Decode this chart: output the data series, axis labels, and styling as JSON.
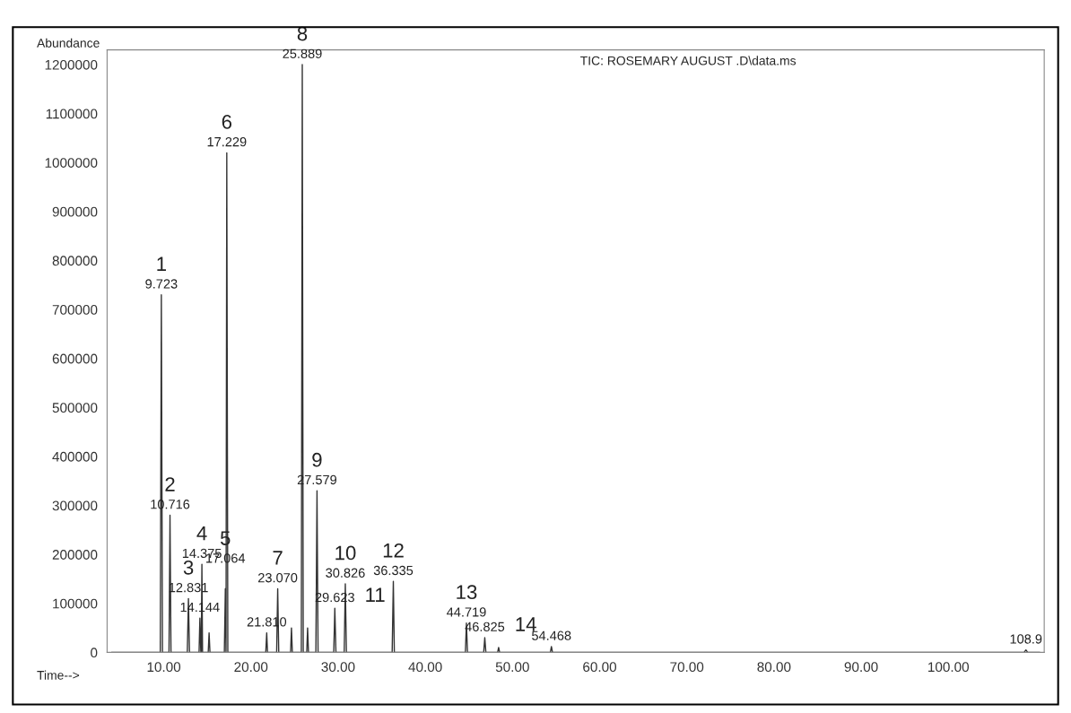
{
  "chart_data": {
    "type": "line",
    "title": "TIC: ROSEMARY AUGUST .D\\data.ms",
    "xlabel": "Time-->",
    "ylabel": "Abundance",
    "x": [
      4.0,
      9.6,
      9.723,
      9.85,
      10.6,
      10.716,
      10.83,
      12.7,
      12.831,
      12.95,
      14.05,
      14.144,
      14.25,
      14.3,
      14.375,
      14.45,
      15.1,
      15.2,
      15.3,
      16.95,
      17.064,
      17.14,
      17.229,
      17.35,
      21.7,
      21.81,
      21.9,
      22.95,
      23.07,
      23.19,
      24.55,
      24.648,
      24.75,
      25.78,
      25.889,
      26.0,
      26.4,
      26.5,
      26.6,
      27.45,
      27.579,
      27.7,
      29.5,
      29.623,
      29.75,
      30.7,
      30.826,
      30.95,
      36.2,
      36.335,
      36.45,
      44.6,
      44.719,
      44.84,
      46.7,
      46.825,
      46.95,
      48.3,
      48.413,
      48.53,
      54.35,
      54.468,
      54.59,
      108.7,
      108.9,
      109.1,
      110.5
    ],
    "series": [
      {
        "color": "#333333",
        "values": [
          0,
          0,
          730000,
          0,
          0,
          280000,
          0,
          0,
          110000,
          0,
          0,
          70000,
          0,
          0,
          180000,
          0,
          0,
          40000,
          0,
          0,
          130000,
          0,
          1020000,
          0,
          0,
          40000,
          0,
          0,
          130000,
          0,
          0,
          50000,
          0,
          0,
          1200000,
          0,
          0,
          50000,
          0,
          0,
          330000,
          0,
          0,
          90000,
          0,
          0,
          140000,
          0,
          0,
          145000,
          0,
          0,
          60000,
          0,
          0,
          30000,
          0,
          0,
          10000,
          0,
          0,
          12000,
          0,
          0,
          5000,
          0,
          0
        ]
      }
    ],
    "xlim": [
      3.5,
      111
    ],
    "ylim": [
      0,
      1230000
    ],
    "xticks": [
      {
        "value": 10,
        "label": "10.00"
      },
      {
        "value": 20,
        "label": "20.00"
      },
      {
        "value": 30,
        "label": "30.00"
      },
      {
        "value": 40,
        "label": "40.00"
      },
      {
        "value": 50,
        "label": "50.00"
      },
      {
        "value": 60,
        "label": "60.00"
      },
      {
        "value": 70,
        "label": "70.00"
      },
      {
        "value": 80,
        "label": "80.00"
      },
      {
        "value": 90,
        "label": "90.00"
      },
      {
        "value": 100,
        "label": "100.00"
      }
    ],
    "yticks": [
      0,
      100000,
      200000,
      300000,
      400000,
      500000,
      600000,
      700000,
      800000,
      900000,
      1000000,
      1100000,
      1200000
    ],
    "grid": false,
    "annotations": [
      {
        "text": "1",
        "x": 9.723,
        "y": 730000
      },
      {
        "text": "9.723",
        "x": 9.723,
        "y": 730000
      },
      {
        "text": "2",
        "x": 10.716,
        "y": 280000
      },
      {
        "text": "10.716",
        "x": 10.716,
        "y": 280000
      },
      {
        "text": "3",
        "x": 12.831,
        "y": 110000
      },
      {
        "text": "12.831",
        "x": 12.831,
        "y": 110000
      },
      {
        "text": "4",
        "x": 14.375,
        "y": 180000
      },
      {
        "text": "14.375",
        "x": 14.375,
        "y": 180000
      },
      {
        "text": "5",
        "x": 17.064,
        "y": 170000
      },
      {
        "text": "17.064",
        "x": 17.064,
        "y": 170000
      },
      {
        "text": "6",
        "x": 17.229,
        "y": 1020000
      },
      {
        "text": "17.229",
        "x": 17.229,
        "y": 1020000
      },
      {
        "text": "7",
        "x": 23.07,
        "y": 130000
      },
      {
        "text": "23.070",
        "x": 23.07,
        "y": 130000
      },
      {
        "text": "8",
        "x": 25.889,
        "y": 1200000
      },
      {
        "text": "25.889",
        "x": 25.889,
        "y": 1200000
      },
      {
        "text": "9",
        "x": 27.579,
        "y": 330000
      },
      {
        "text": "27.579",
        "x": 27.579,
        "y": 330000
      },
      {
        "text": "10",
        "x": 30.826,
        "y": 140000
      },
      {
        "text": "30.826",
        "x": 30.826,
        "y": 140000
      },
      {
        "text": "11",
        "x": 29.623,
        "y": 90000
      },
      {
        "text": "29.623",
        "x": 29.623,
        "y": 90000
      },
      {
        "text": "12",
        "x": 36.335,
        "y": 145000
      },
      {
        "text": "36.335",
        "x": 36.335,
        "y": 145000
      },
      {
        "text": "13",
        "x": 44.719,
        "y": 60000
      },
      {
        "text": "44.719",
        "x": 44.719,
        "y": 60000
      },
      {
        "text": "14",
        "x": 46.825,
        "y": 30000
      },
      {
        "text": "46.825",
        "x": 46.825,
        "y": 30000
      },
      {
        "text": "14.144",
        "x": 14.144,
        "y": 70000
      },
      {
        "text": "21.810",
        "x": 21.81,
        "y": 40000
      },
      {
        "text": "54.468",
        "x": 54.468,
        "y": 12000
      },
      {
        "text": "108.9",
        "x": 108.9,
        "y": 5000
      }
    ]
  }
}
